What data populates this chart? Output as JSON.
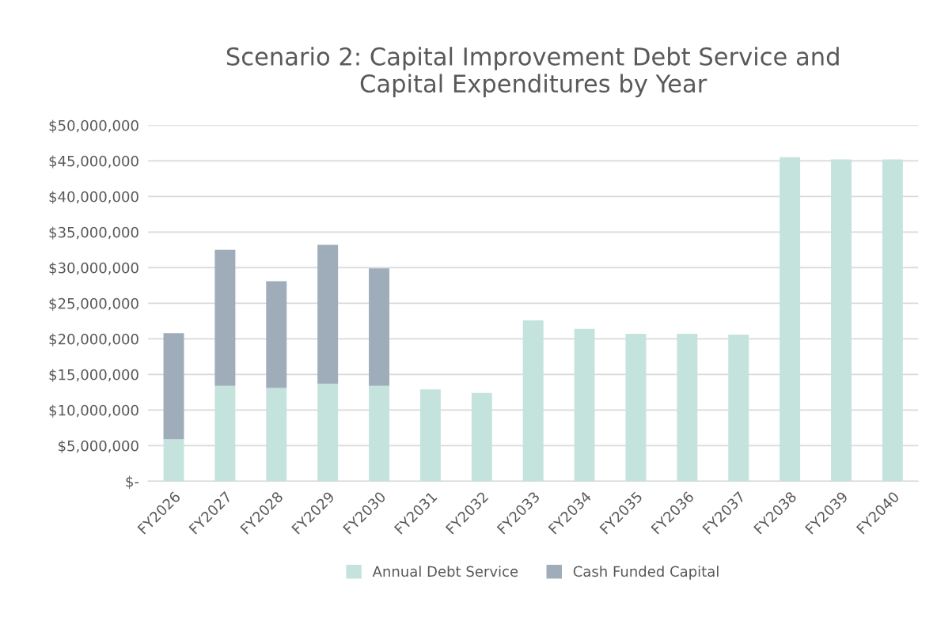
{
  "chart_data": {
    "type": "bar",
    "title": "Scenario 2: Capital Improvement Debt Service and\nCapital Expenditures by Year",
    "categories": [
      "FY2026",
      "FY2027",
      "FY2028",
      "FY2029",
      "FY2030",
      "FY2031",
      "FY2032",
      "FY2033",
      "FY2034",
      "FY2035",
      "FY2036",
      "FY2037",
      "FY2038",
      "FY2039",
      "FY2040"
    ],
    "stacked": true,
    "series": [
      {
        "name": "Annual Debt Service",
        "color": "#c5e3dd",
        "values": [
          5900000,
          13400000,
          13100000,
          13700000,
          13400000,
          12900000,
          12400000,
          22600000,
          21400000,
          20700000,
          20700000,
          20600000,
          45500000,
          45200000,
          45200000
        ]
      },
      {
        "name": "Cash Funded Capital",
        "color": "#9eadb9",
        "values": [
          14900000,
          19100000,
          15000000,
          19500000,
          16500000,
          null,
          null,
          null,
          null,
          null,
          null,
          null,
          null,
          null,
          null
        ]
      }
    ],
    "ylim": [
      0,
      50000000
    ],
    "yticks": [
      {
        "value": 0,
        "label": "$-"
      },
      {
        "value": 5000000,
        "label": "$5,000,000"
      },
      {
        "value": 10000000,
        "label": "$10,000,000"
      },
      {
        "value": 15000000,
        "label": "$15,000,000"
      },
      {
        "value": 20000000,
        "label": "$20,000,000"
      },
      {
        "value": 25000000,
        "label": "$25,000,000"
      },
      {
        "value": 30000000,
        "label": "$30,000,000"
      },
      {
        "value": 35000000,
        "label": "$35,000,000"
      },
      {
        "value": 40000000,
        "label": "$40,000,000"
      },
      {
        "value": 45000000,
        "label": "$45,000,000"
      },
      {
        "value": 50000000,
        "label": "$50,000,000"
      }
    ],
    "grid": "y",
    "legend": "bottom"
  }
}
